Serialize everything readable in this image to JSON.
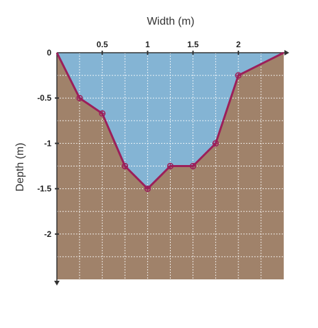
{
  "chart_data": {
    "type": "area",
    "title": "",
    "xlabel": "Width (m)",
    "ylabel": "Depth (m)",
    "xlim": [
      0,
      2.5
    ],
    "ylim": [
      -2.5,
      0
    ],
    "x_ticks": [
      0.5,
      1,
      1.5,
      2
    ],
    "x_tick_labels": [
      "0.5",
      "1",
      "1.5",
      "2"
    ],
    "y_ticks": [
      0,
      -0.5,
      -1,
      -1.5,
      -2
    ],
    "y_tick_labels": [
      "0",
      "-0.5",
      "-1",
      "-1.5",
      "-2"
    ],
    "grid": true,
    "series": [
      {
        "x": [
          0,
          0.25,
          0.5,
          0.75,
          1,
          1.25,
          1.5,
          1.75,
          2,
          2.5
        ],
        "y": [
          0,
          -0.5,
          -0.67,
          -1.25,
          -1.5,
          -1.25,
          -1.25,
          -1,
          -0.25,
          0
        ]
      }
    ],
    "colors": {
      "water": "#84b4d4",
      "ground": "#a0826a",
      "profile_line": "#9c1f5a",
      "grid": "#ffffff",
      "axis": "#333333"
    }
  }
}
